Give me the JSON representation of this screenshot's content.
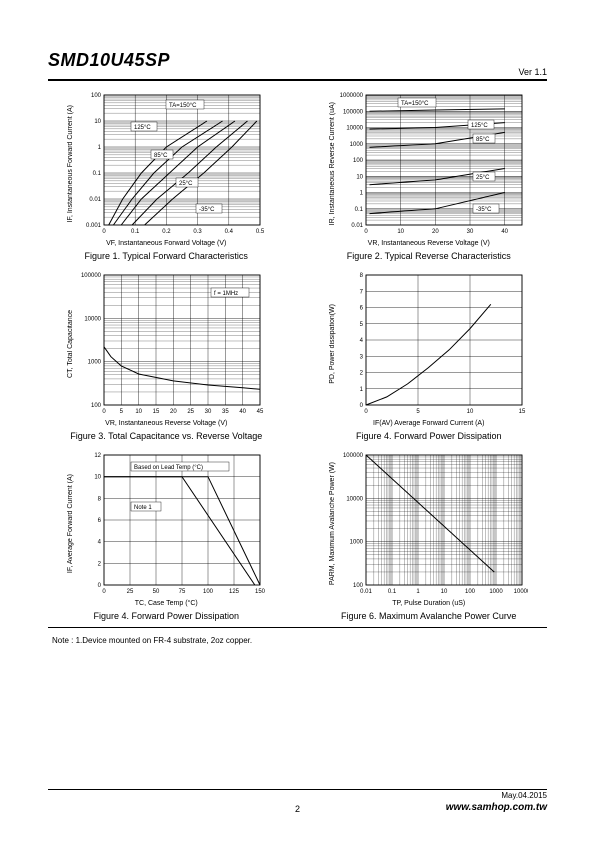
{
  "header": {
    "title": "SMD10U45SP",
    "version": "Ver 1.1"
  },
  "footer": {
    "date": "May.04.2015",
    "page": "2",
    "url": "www.samhop.com.tw"
  },
  "note": "Note : 1.Device mounted on FR-4 substrate, 2oz copper.",
  "charts": {
    "fig1": {
      "caption": "Figure 1. Typical Forward Characteristics",
      "xlabel": "VF, Instantaneous Forward Voltage (V)",
      "ylabel": "IF, Instantaneous Forward Current (A)",
      "xlim": [
        0,
        0.5
      ],
      "xticks": [
        0,
        0.1,
        0.2,
        0.3,
        0.4,
        0.5
      ],
      "yscale": "log",
      "ylim": [
        0.001,
        100
      ],
      "yticks": [
        0.001,
        0.01,
        0.1,
        1,
        10,
        100
      ],
      "curve_labels": [
        "TA=150°C",
        "125°C",
        "85°C",
        "25°C",
        "-35°C"
      ],
      "series": [
        [
          [
            0.015,
            0.001
          ],
          [
            0.06,
            0.01
          ],
          [
            0.12,
            0.1
          ],
          [
            0.2,
            1
          ],
          [
            0.33,
            10
          ]
        ],
        [
          [
            0.03,
            0.001
          ],
          [
            0.09,
            0.01
          ],
          [
            0.16,
            0.1
          ],
          [
            0.25,
            1
          ],
          [
            0.38,
            10
          ]
        ],
        [
          [
            0.055,
            0.001
          ],
          [
            0.12,
            0.01
          ],
          [
            0.21,
            0.1
          ],
          [
            0.3,
            1
          ],
          [
            0.42,
            10
          ]
        ],
        [
          [
            0.09,
            0.001
          ],
          [
            0.17,
            0.01
          ],
          [
            0.27,
            0.1
          ],
          [
            0.36,
            1
          ],
          [
            0.46,
            10
          ]
        ],
        [
          [
            0.13,
            0.001
          ],
          [
            0.22,
            0.01
          ],
          [
            0.32,
            0.1
          ],
          [
            0.41,
            1
          ],
          [
            0.49,
            10
          ]
        ]
      ],
      "grid_color": "#000000",
      "line_color": "#000000",
      "bg": "#ffffff"
    },
    "fig2": {
      "caption": "Figure 2. Typical Reverse Characteristics",
      "xlabel": "VR, Instantaneous Reverse Voltage (V)",
      "ylabel": "IR, Instantaneous Reverse Current (uA)",
      "xlim": [
        0,
        45
      ],
      "xticks": [
        0,
        10,
        20,
        30,
        40
      ],
      "yscale": "log",
      "ylim": [
        0.01,
        1000000
      ],
      "yticks": [
        0.01,
        0.1,
        1,
        10,
        100,
        1000,
        10000,
        100000,
        1000000
      ],
      "curve_labels": [
        "TA=150°C",
        "125°C",
        "85°C",
        "25°C",
        "-35°C"
      ],
      "series": [
        [
          [
            1,
            100000
          ],
          [
            20,
            120000
          ],
          [
            40,
            140000
          ]
        ],
        [
          [
            1,
            8000
          ],
          [
            20,
            10000
          ],
          [
            40,
            20000
          ]
        ],
        [
          [
            1,
            600
          ],
          [
            20,
            1000
          ],
          [
            40,
            5000
          ]
        ],
        [
          [
            1,
            3
          ],
          [
            20,
            6
          ],
          [
            40,
            30
          ]
        ],
        [
          [
            1,
            0.05
          ],
          [
            20,
            0.1
          ],
          [
            40,
            1
          ]
        ]
      ],
      "grid_color": "#000000",
      "line_color": "#000000",
      "bg": "#ffffff"
    },
    "fig3": {
      "caption": "Figure 3. Total Capacitance vs. Reverse Voltage",
      "xlabel": "VR, Instantaneous Reverse Voltage (V)",
      "ylabel": "CT, Total Capacitance",
      "xlim": [
        0,
        45
      ],
      "xticks": [
        0,
        5,
        10,
        15,
        20,
        25,
        30,
        35,
        40,
        45
      ],
      "yscale": "log",
      "ylim": [
        100,
        100000
      ],
      "yticks": [
        100,
        1000,
        10000,
        100000
      ],
      "annotation": "f = 1MHz",
      "series": [
        [
          [
            0,
            2200
          ],
          [
            2,
            1300
          ],
          [
            5,
            800
          ],
          [
            10,
            520
          ],
          [
            20,
            360
          ],
          [
            30,
            290
          ],
          [
            40,
            250
          ],
          [
            45,
            230
          ]
        ]
      ],
      "grid_color": "#000000",
      "line_color": "#000000",
      "bg": "#ffffff"
    },
    "fig4a": {
      "caption": "Figure 4. Forward Power Dissipation",
      "xlabel": "IF(AV) Average Forward Current (A)",
      "ylabel": "PD, Power dissipation(W)",
      "xlim": [
        0,
        15
      ],
      "xticks": [
        0,
        5,
        10,
        15
      ],
      "ylim": [
        0,
        8
      ],
      "yticks": [
        0,
        1,
        2,
        3,
        4,
        5,
        6,
        7,
        8
      ],
      "series": [
        [
          [
            0,
            0
          ],
          [
            2,
            0.5
          ],
          [
            4,
            1.3
          ],
          [
            6,
            2.3
          ],
          [
            8,
            3.4
          ],
          [
            10,
            4.7
          ],
          [
            12,
            6.2
          ]
        ]
      ],
      "grid_color": "#000000",
      "line_color": "#000000",
      "bg": "#ffffff"
    },
    "fig4b": {
      "caption": "Figure 4. Forward Power Dissipation",
      "xlabel": "TC, Case Temp (°C)",
      "ylabel": "IF, Average Forward Current (A)",
      "xlim": [
        0,
        150
      ],
      "xticks": [
        0,
        25,
        50,
        75,
        100,
        125,
        150
      ],
      "ylim": [
        0,
        12
      ],
      "yticks": [
        0,
        2,
        4,
        6,
        8,
        10,
        12
      ],
      "annotation1": "Based on Lead Temp (°C)",
      "annotation2": "Note 1",
      "series": [
        [
          [
            0,
            10
          ],
          [
            100,
            10
          ],
          [
            150,
            0
          ]
        ],
        [
          [
            0,
            10
          ],
          [
            75,
            10
          ],
          [
            145,
            0
          ]
        ]
      ],
      "grid_color": "#000000",
      "line_color": "#000000",
      "bg": "#ffffff"
    },
    "fig6": {
      "caption": "Figure 6. Maximum Avalanche Power Curve",
      "xlabel": "TP, Pulse Duration (uS)",
      "ylabel": "PARM, Maximum Avalanche Power (W)",
      "xscale": "log",
      "xlim": [
        0.01,
        10000
      ],
      "xticks": [
        0.01,
        0.1,
        1,
        10,
        100,
        1000,
        10000
      ],
      "yscale": "log",
      "ylim": [
        100,
        100000
      ],
      "yticks": [
        100,
        1000,
        10000,
        100000
      ],
      "series": [
        [
          [
            0.01,
            100000
          ],
          [
            850,
            200
          ]
        ]
      ],
      "grid_color": "#000000",
      "line_color": "#000000",
      "bg": "#ffffff"
    }
  },
  "plot": {
    "width": 190,
    "height": 150,
    "grid_stroke": 0.4,
    "border_stroke": 0.9,
    "line_stroke": 1.0
  }
}
